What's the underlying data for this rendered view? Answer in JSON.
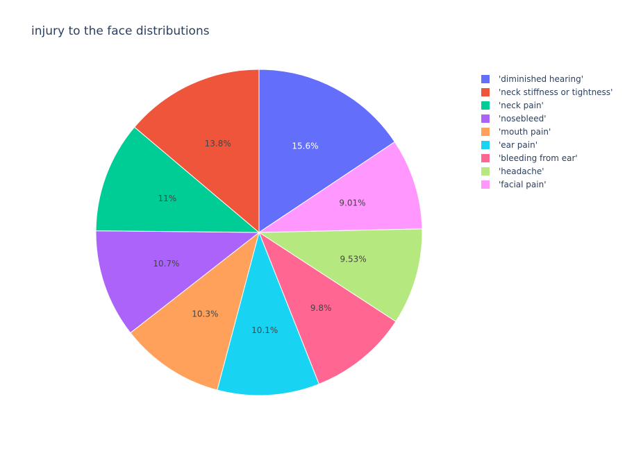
{
  "chart_data": {
    "type": "pie",
    "title": "injury to the face distributions",
    "direction": "clockwise",
    "legend_position": "top-right",
    "slices": [
      {
        "label": "'diminished hearing'",
        "percent": 15.6,
        "percent_label": "15.6%",
        "color": "#636efa",
        "text_color": "#ffffff"
      },
      {
        "label": "'facial pain'",
        "percent": 9.01,
        "percent_label": "9.01%",
        "color": "#ff97ff",
        "text_color": "#444444"
      },
      {
        "label": "'headache'",
        "percent": 9.53,
        "percent_label": "9.53%",
        "color": "#b6e880",
        "text_color": "#444444"
      },
      {
        "label": "'bleeding from ear'",
        "percent": 9.8,
        "percent_label": "9.8%",
        "color": "#ff6692",
        "text_color": "#444444"
      },
      {
        "label": "'ear pain'",
        "percent": 10.1,
        "percent_label": "10.1%",
        "color": "#19d3f3",
        "text_color": "#444444"
      },
      {
        "label": "'mouth pain'",
        "percent": 10.3,
        "percent_label": "10.3%",
        "color": "#ffa15a",
        "text_color": "#444444"
      },
      {
        "label": "'nosebleed'",
        "percent": 10.7,
        "percent_label": "10.7%",
        "color": "#ab63fa",
        "text_color": "#444444"
      },
      {
        "label": "'neck pain'",
        "percent": 11.0,
        "percent_label": "11%",
        "color": "#00cc96",
        "text_color": "#444444"
      },
      {
        "label": "'neck stiffness or tightness'",
        "percent": 13.8,
        "percent_label": "13.8%",
        "color": "#ef553b",
        "text_color": "#444444"
      }
    ],
    "legend": [
      {
        "label": "'diminished hearing'",
        "color": "#636efa"
      },
      {
        "label": "'neck stiffness or tightness'",
        "color": "#ef553b"
      },
      {
        "label": "'neck pain'",
        "color": "#00cc96"
      },
      {
        "label": "'nosebleed'",
        "color": "#ab63fa"
      },
      {
        "label": "'mouth pain'",
        "color": "#ffa15a"
      },
      {
        "label": "'ear pain'",
        "color": "#19d3f3"
      },
      {
        "label": "'bleeding from ear'",
        "color": "#ff6692"
      },
      {
        "label": "'headache'",
        "color": "#b6e880"
      },
      {
        "label": "'facial pain'",
        "color": "#ff97ff"
      }
    ]
  }
}
